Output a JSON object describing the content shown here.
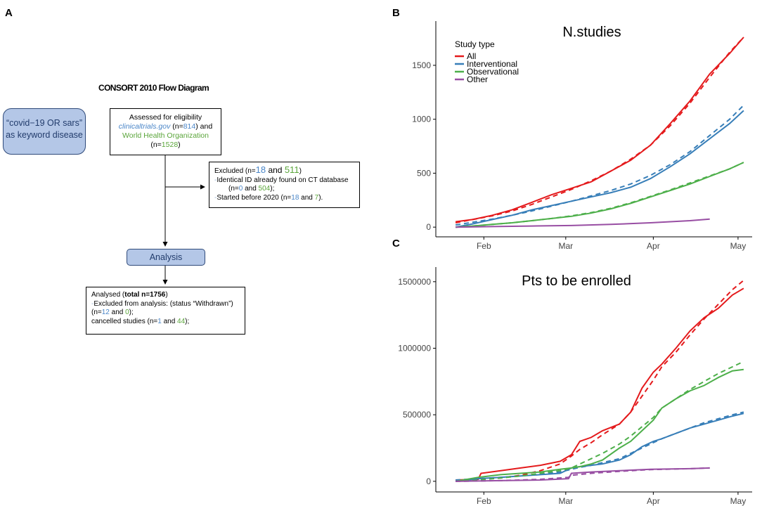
{
  "panels": {
    "a": "A",
    "b": "B",
    "c": "C"
  },
  "flow": {
    "title": "CONSORT 2010 Flow Diagram",
    "keyword_line1": "“covid−19 OR sars”",
    "keyword_line2": "as keyword disease",
    "assessed": {
      "line1": "Assessed for eligibility",
      "ct_source": "clinicaltrials.gov",
      "ct_prefix": " (n=",
      "ct_n": "814",
      "ct_suffix": ") and",
      "who_source": "World Health Organization",
      "who_prefix": "(n=",
      "who_n": "1528",
      "who_suffix": ")"
    },
    "excluded": {
      "label": "Excluded  (n=",
      "n1": "18",
      "and": " and ",
      "n2": "511",
      "close": ")",
      "dash": "-",
      "identical_line": "Identical  ID already found on CT database",
      "id_prefix": "(n=",
      "id_n1": "0",
      "id_and": " and ",
      "id_n2": "504",
      "id_suffix": ");",
      "started_line": "Started   before 2020 (n=",
      "st_n1": "18",
      "st_and": " and ",
      "st_n2": "7",
      "st_suffix": ")."
    },
    "analysis_label": "Analysis",
    "analysed": {
      "prefix": "Analysed (",
      "total": "total n=1756",
      "suffix": ")",
      "dash": "-",
      "excl_line": "Excluded  from analysis: (status “Withdrawn”)",
      "w_prefix": "(n=",
      "w_n1": "12",
      "w_and": " and ",
      "w_n2": "0",
      "w_suffix": ");",
      "c_prefix": "cancelled studies (n=",
      "c_n1": "1",
      "c_and": " and ",
      "c_n2": "44",
      "c_suffix": ");"
    }
  },
  "legend": {
    "title": "Study type",
    "items": [
      {
        "label": "All",
        "color": "#e41a1c"
      },
      {
        "label": "Interventional",
        "color": "#377eb8"
      },
      {
        "label": "Observational",
        "color": "#4daf4a"
      },
      {
        "label": "Other",
        "color": "#984ea3"
      }
    ]
  },
  "chart_data": [
    {
      "type": "line",
      "title": "N.studies",
      "xlabel": "",
      "ylabel": "",
      "x_ticks": [
        "Feb",
        "Mar",
        "Apr",
        "May"
      ],
      "y_ticks": [
        "0",
        "500",
        "1000",
        "1500"
      ],
      "ylim": [
        -90,
        1910
      ],
      "x_unit": "days since Jan 1 2020",
      "xlim": [
        15,
        127
      ],
      "legend_position": "top-left",
      "series": [
        {
          "name": "All",
          "color": "#e41a1c",
          "x": [
            22,
            28,
            35,
            42,
            49,
            56,
            63,
            70,
            77,
            84,
            91,
            98,
            105,
            112,
            119,
            124
          ],
          "values": [
            50,
            70,
            110,
            160,
            230,
            300,
            360,
            420,
            520,
            620,
            760,
            960,
            1170,
            1420,
            1610,
            1760
          ],
          "fit": [
            40,
            70,
            105,
            150,
            210,
            280,
            350,
            430,
            520,
            630,
            760,
            940,
            1150,
            1390,
            1620,
            1760
          ]
        },
        {
          "name": "Interventional",
          "color": "#377eb8",
          "x": [
            22,
            28,
            35,
            42,
            49,
            56,
            63,
            70,
            77,
            84,
            91,
            98,
            105,
            112,
            119,
            124
          ],
          "values": [
            0,
            30,
            70,
            110,
            160,
            200,
            240,
            280,
            320,
            370,
            450,
            560,
            680,
            820,
            960,
            1080
          ],
          "fit": [
            20,
            45,
            75,
            110,
            150,
            195,
            240,
            290,
            340,
            400,
            480,
            580,
            700,
            850,
            1000,
            1130
          ]
        },
        {
          "name": "Observational",
          "color": "#4daf4a",
          "x": [
            22,
            28,
            35,
            42,
            49,
            56,
            63,
            70,
            77,
            84,
            91,
            98,
            105,
            112,
            119,
            124
          ],
          "values": [
            0,
            10,
            25,
            40,
            60,
            80,
            100,
            130,
            170,
            220,
            280,
            340,
            400,
            470,
            540,
            600
          ],
          "fit": [
            0,
            10,
            25,
            40,
            60,
            80,
            105,
            135,
            175,
            225,
            285,
            345,
            410,
            475,
            540,
            600
          ]
        },
        {
          "name": "Other",
          "color": "#984ea3",
          "x": [
            22,
            35,
            49,
            63,
            77,
            91,
            105,
            112
          ],
          "values": [
            0,
            5,
            10,
            15,
            25,
            40,
            60,
            75
          ]
        }
      ]
    },
    {
      "type": "line",
      "title": "Pts to be enrolled",
      "xlabel": "",
      "ylabel": "",
      "x_ticks": [
        "Feb",
        "Mar",
        "Apr",
        "May"
      ],
      "y_ticks": [
        "0",
        "500000",
        "1000000",
        "1500000"
      ],
      "ylim": [
        -80000,
        1610000
      ],
      "x_unit": "days since Jan 1 2020",
      "xlim": [
        15,
        127
      ],
      "series": [
        {
          "name": "All",
          "color": "#e41a1c",
          "x": [
            22,
            30,
            31,
            38,
            45,
            52,
            59,
            63,
            66,
            70,
            74,
            80,
            84,
            88,
            92,
            95,
            100,
            105,
            110,
            115,
            120,
            124
          ],
          "values": [
            10000,
            15000,
            60000,
            80000,
            100000,
            120000,
            150000,
            200000,
            300000,
            330000,
            380000,
            430000,
            520000,
            700000,
            820000,
            880000,
            1000000,
            1130000,
            1230000,
            1300000,
            1400000,
            1450000
          ],
          "fit": [
            5000,
            10000,
            15000,
            25000,
            45000,
            80000,
            130000,
            190000,
            240000,
            290000,
            350000,
            430000,
            520000,
            640000,
            760000,
            860000,
            970000,
            1100000,
            1220000,
            1330000,
            1440000,
            1510000
          ]
        },
        {
          "name": "Interventional",
          "color": "#377eb8",
          "x": [
            22,
            30,
            38,
            45,
            52,
            59,
            63,
            66,
            70,
            74,
            80,
            84,
            88,
            92,
            95,
            100,
            105,
            110,
            115,
            120,
            124
          ],
          "values": [
            0,
            20000,
            30000,
            40000,
            50000,
            60000,
            100000,
            110000,
            120000,
            130000,
            160000,
            200000,
            260000,
            300000,
            320000,
            360000,
            400000,
            430000,
            460000,
            490000,
            510000
          ],
          "fit": [
            10000,
            20000,
            30000,
            40000,
            55000,
            70000,
            90000,
            105000,
            120000,
            140000,
            170000,
            210000,
            250000,
            290000,
            320000,
            360000,
            400000,
            440000,
            470000,
            500000,
            520000
          ]
        },
        {
          "name": "Observational",
          "color": "#4daf4a",
          "x": [
            22,
            30,
            38,
            45,
            52,
            59,
            63,
            66,
            70,
            74,
            80,
            84,
            88,
            92,
            95,
            100,
            105,
            110,
            115,
            120,
            124
          ],
          "values": [
            0,
            30000,
            50000,
            60000,
            70000,
            90000,
            100000,
            110000,
            130000,
            160000,
            250000,
            300000,
            380000,
            460000,
            550000,
            620000,
            680000,
            720000,
            780000,
            830000,
            840000
          ],
          "fit": [
            0,
            10000,
            25000,
            40000,
            60000,
            80000,
            100000,
            130000,
            170000,
            210000,
            280000,
            340000,
            410000,
            480000,
            550000,
            620000,
            690000,
            750000,
            810000,
            860000,
            900000
          ]
        },
        {
          "name": "Other",
          "color": "#984ea3",
          "x": [
            22,
            38,
            52,
            62,
            63,
            70,
            80,
            91,
            105,
            112
          ],
          "values": [
            0,
            5000,
            10000,
            20000,
            60000,
            70000,
            80000,
            90000,
            95000,
            100000
          ],
          "fit": [
            0,
            5000,
            15000,
            30000,
            45000,
            60000,
            75000,
            88000,
            95000,
            100000
          ]
        }
      ]
    }
  ]
}
